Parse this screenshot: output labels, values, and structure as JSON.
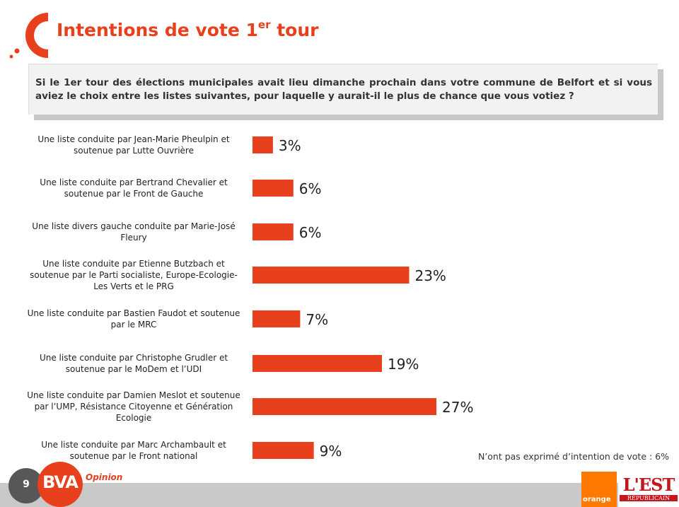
{
  "page": {
    "title_main": "Intentions de vote 1",
    "title_sup": "er",
    "title_end": " tour",
    "question": "Si le 1er tour des élections municipales avait lieu dimanche prochain dans votre commune de Belfort et si vous aviez le choix entre les listes suivantes, pour laquelle y aurait-il le plus de chance que vous votiez ?",
    "footnote": "N’ont pas exprimé d’intention de vote : 6%",
    "page_number": "9",
    "brand": "BVA",
    "brand_tag": "Opinion",
    "partner1": "orange",
    "partner2": "L'EST",
    "partner2_sub": "RÉPUBLICAIN"
  },
  "colors": {
    "accent": "#e8401c",
    "bar": "#e8401c"
  },
  "chart_data": {
    "type": "bar",
    "orientation": "horizontal",
    "categories": [
      "Une liste conduite par Jean-Marie Pheulpin et soutenue par Lutte Ouvrière",
      "Une liste conduite par Bertrand Chevalier et soutenue par le Front de Gauche",
      "Une liste divers gauche conduite par Marie-José Fleury",
      "Une liste conduite par Etienne Butzbach et soutenue par le Parti socialiste, Europe-Ecologie-Les Verts et le PRG",
      "Une liste conduite par Bastien Faudot et soutenue par le MRC",
      "Une liste conduite par Christophe Grudler et soutenue par le MoDem et l’UDI",
      "Une liste conduite par Damien Meslot et soutenue par l’UMP, Résistance Citoyenne et Génération Ecologie",
      "Une liste conduite par Marc Archambault et soutenue par le Front national"
    ],
    "values": [
      3,
      6,
      6,
      23,
      7,
      19,
      27,
      9
    ],
    "value_labels": [
      "3%",
      "6%",
      "6%",
      "23%",
      "7%",
      "19%",
      "27%",
      "9%"
    ],
    "unit": "%"
  }
}
